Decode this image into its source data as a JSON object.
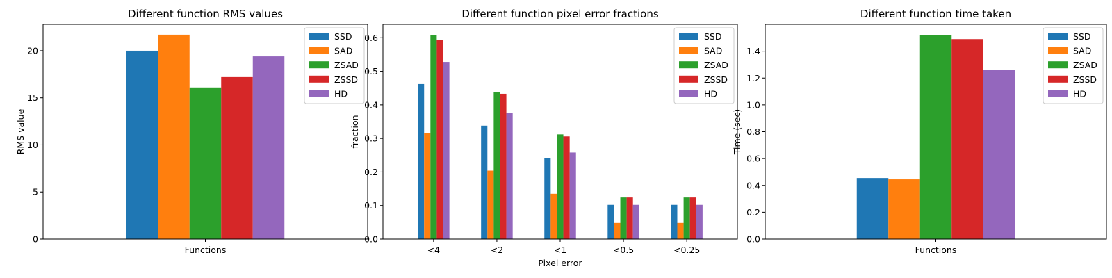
{
  "colors": {
    "SSD": "#1f77b4",
    "SAD": "#ff7f0e",
    "ZSAD": "#2ca02c",
    "ZSSD": "#d62728",
    "HD": "#9467bd"
  },
  "chart_data": [
    {
      "type": "bar",
      "title": "Different function RMS values",
      "xlabel": "",
      "ylabel": "RMS value",
      "categories": [
        "Functions"
      ],
      "ylim": [
        0,
        22.8
      ],
      "yticks": [
        0,
        5,
        10,
        15,
        20
      ],
      "series": [
        {
          "name": "SSD",
          "values": [
            20.0
          ]
        },
        {
          "name": "SAD",
          "values": [
            21.7
          ]
        },
        {
          "name": "ZSAD",
          "values": [
            16.1
          ]
        },
        {
          "name": "ZSSD",
          "values": [
            17.2
          ]
        },
        {
          "name": "HD",
          "values": [
            19.4
          ]
        }
      ],
      "legend": "top-right"
    },
    {
      "type": "bar",
      "title": "Different function pixel error fractions",
      "xlabel": "Pixel error",
      "ylabel": "fraction",
      "categories": [
        "<4",
        "<2",
        "<1",
        "<0.5",
        "<0.25"
      ],
      "ylim": [
        0,
        0.64
      ],
      "yticks": [
        0.0,
        0.1,
        0.2,
        0.3,
        0.4,
        0.5,
        0.6
      ],
      "series": [
        {
          "name": "SSD",
          "values": [
            0.462,
            0.338,
            0.241,
            0.102,
            0.102
          ]
        },
        {
          "name": "SAD",
          "values": [
            0.316,
            0.204,
            0.135,
            0.048,
            0.048
          ]
        },
        {
          "name": "ZSAD",
          "values": [
            0.607,
            0.437,
            0.312,
            0.124,
            0.124
          ]
        },
        {
          "name": "ZSSD",
          "values": [
            0.593,
            0.433,
            0.306,
            0.124,
            0.124
          ]
        },
        {
          "name": "HD",
          "values": [
            0.528,
            0.376,
            0.258,
            0.102,
            0.102
          ]
        }
      ],
      "legend": "top-right"
    },
    {
      "type": "bar",
      "title": "Different function time taken",
      "xlabel": "",
      "ylabel": "Time (sec)",
      "categories": [
        "Functions"
      ],
      "ylim": [
        0,
        1.6
      ],
      "yticks": [
        0.0,
        0.2,
        0.4,
        0.6,
        0.8,
        1.0,
        1.2,
        1.4
      ],
      "series": [
        {
          "name": "SSD",
          "values": [
            0.455
          ]
        },
        {
          "name": "SAD",
          "values": [
            0.445
          ]
        },
        {
          "name": "ZSAD",
          "values": [
            1.52
          ]
        },
        {
          "name": "ZSSD",
          "values": [
            1.49
          ]
        },
        {
          "name": "HD",
          "values": [
            1.26
          ]
        }
      ],
      "legend": "top-right"
    }
  ]
}
